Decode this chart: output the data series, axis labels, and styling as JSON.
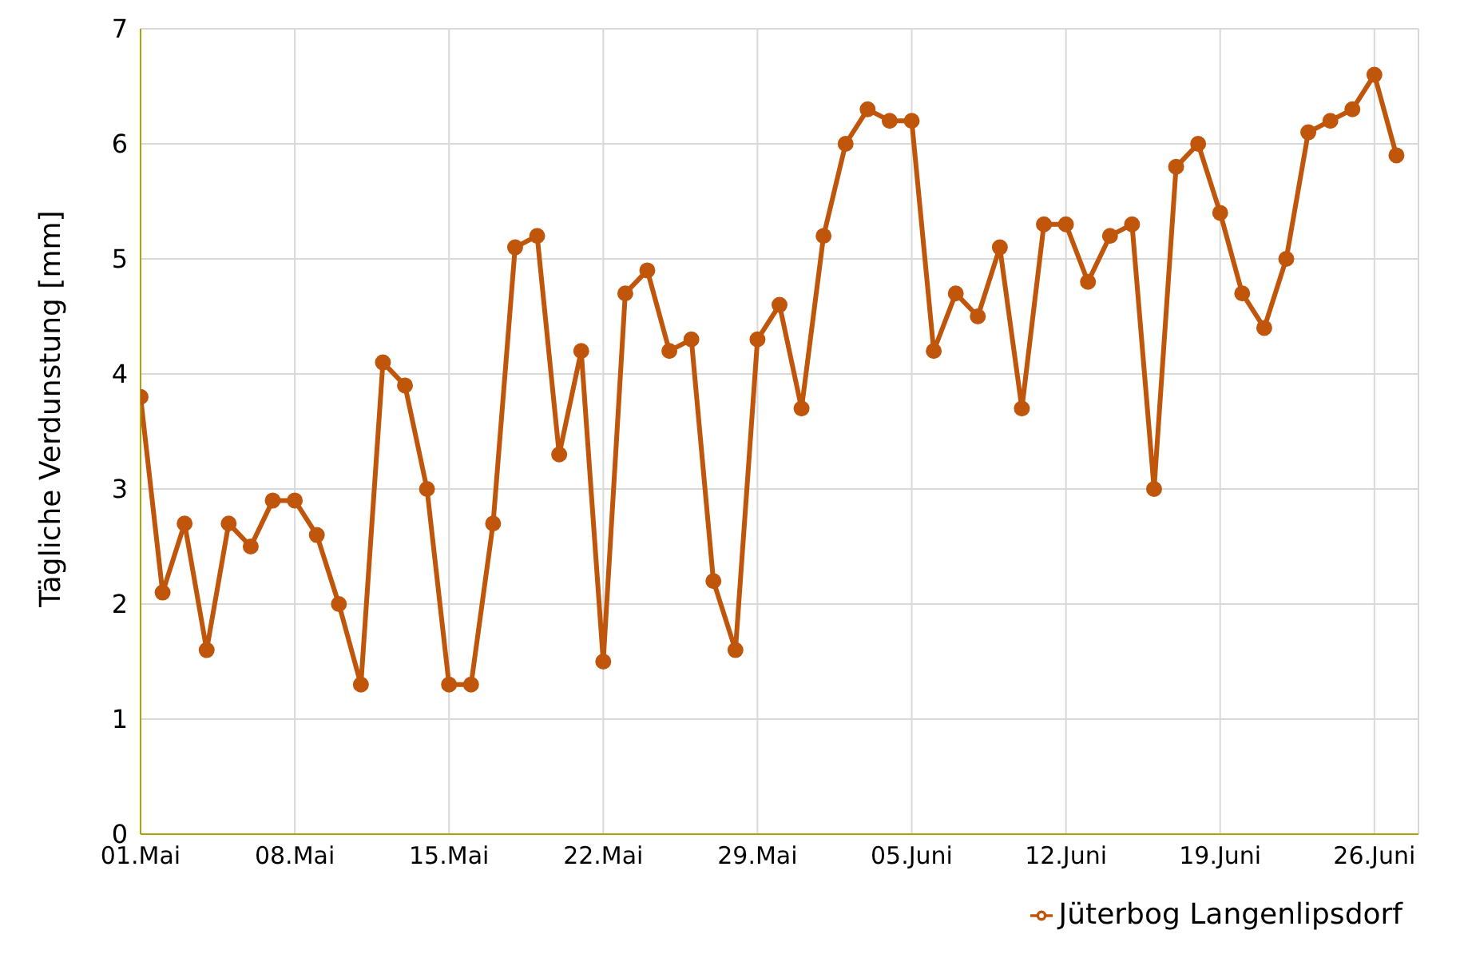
{
  "chart_data": {
    "type": "line",
    "ylabel": "Tägliche Verdunstung [mm]",
    "x": [
      "--05-01",
      "--05-02",
      "--05-03",
      "--05-04",
      "--05-05",
      "--05-06",
      "--05-07",
      "--05-08",
      "--05-09",
      "--05-10",
      "--05-11",
      "--05-12",
      "--05-13",
      "--05-14",
      "--05-15",
      "--05-16",
      "--05-17",
      "--05-18",
      "--05-19",
      "--05-20",
      "--05-21",
      "--05-22",
      "--05-23",
      "--05-24",
      "--05-25",
      "--05-26",
      "--05-27",
      "--05-28",
      "--05-29",
      "--05-30",
      "--05-31",
      "--06-01",
      "--06-02",
      "--06-03",
      "--06-04",
      "--06-05",
      "--06-06",
      "--06-07",
      "--06-08",
      "--06-09",
      "--06-10",
      "--06-11",
      "--06-12",
      "--06-13",
      "--06-14",
      "--06-15",
      "--06-16",
      "--06-17",
      "--06-18",
      "--06-19",
      "--06-20",
      "--06-21",
      "--06-22",
      "--06-23",
      "--06-24",
      "--06-25",
      "--06-26",
      "--06-27"
    ],
    "series": [
      {
        "name": "Jüterbog Langenlipsdorf",
        "color": "#c0560b",
        "values": [
          3.8,
          2.1,
          2.7,
          1.6,
          2.7,
          2.5,
          2.9,
          2.9,
          2.6,
          2.0,
          1.3,
          4.1,
          3.9,
          3.0,
          1.3,
          1.3,
          2.7,
          5.1,
          5.2,
          3.3,
          4.2,
          1.5,
          4.7,
          4.9,
          4.2,
          4.3,
          2.2,
          1.6,
          4.3,
          4.6,
          3.7,
          5.2,
          6.0,
          6.3,
          6.2,
          6.2,
          4.2,
          4.7,
          4.5,
          5.1,
          3.7,
          5.3,
          5.3,
          4.8,
          5.2,
          5.3,
          3.0,
          5.8,
          6.0,
          5.4,
          4.7,
          4.4,
          5.0,
          6.1,
          6.2,
          6.3,
          6.6,
          5.9
        ]
      }
    ],
    "xlim": [
      "--05-01",
      "--06-28"
    ],
    "xticks": [
      {
        "value": "--05-01",
        "label": "01.Mai"
      },
      {
        "value": "--05-08",
        "label": "08.Mai"
      },
      {
        "value": "--05-15",
        "label": "15.Mai"
      },
      {
        "value": "--05-22",
        "label": "22.Mai"
      },
      {
        "value": "--05-29",
        "label": "29.Mai"
      },
      {
        "value": "--06-05",
        "label": "05.Juni"
      },
      {
        "value": "--06-12",
        "label": "12.Juni"
      },
      {
        "value": "--06-19",
        "label": "19.Juni"
      },
      {
        "value": "--06-26",
        "label": "26.Juni"
      }
    ],
    "ylim": [
      0,
      7
    ],
    "yticks": [
      0,
      1,
      2,
      3,
      4,
      5,
      6,
      7
    ],
    "grid": true,
    "legend": "bottom right",
    "marker": "circle",
    "line_style": "solid"
  }
}
